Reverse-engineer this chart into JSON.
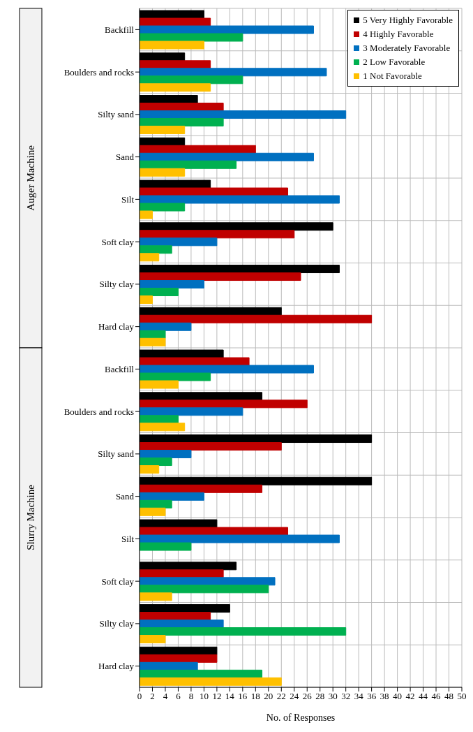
{
  "chart_data": {
    "type": "bar",
    "orientation": "horizontal",
    "xlabel": "No. of Responses",
    "categories": [
      "Backfill",
      "Boulders and rocks",
      "Silty sand",
      "Sand",
      "Silt",
      "Soft clay",
      "Silty clay",
      "Hard clay",
      "Backfill",
      "Boulders and rocks",
      "Silty sand",
      "Sand",
      "Silt",
      "Soft clay",
      "Silty clay",
      "Hard clay"
    ],
    "series": [
      {
        "name": "5 Very Highly Favorable",
        "color": "#000000",
        "values": [
          10,
          7,
          9,
          7,
          11,
          30,
          31,
          22,
          13,
          19,
          36,
          36,
          12,
          15,
          14,
          12
        ]
      },
      {
        "name": "4 Highly Favorable",
        "color": "#c00000",
        "values": [
          11,
          11,
          13,
          18,
          23,
          24,
          25,
          36,
          17,
          26,
          22,
          19,
          23,
          13,
          11,
          12
        ]
      },
      {
        "name": "3 Moderately Favorable",
        "color": "#0070c0",
        "values": [
          27,
          29,
          32,
          27,
          31,
          12,
          10,
          8,
          27,
          16,
          8,
          10,
          31,
          21,
          13,
          9
        ]
      },
      {
        "name": "2 Low Favorable",
        "color": "#00b050",
        "values": [
          16,
          16,
          13,
          15,
          7,
          5,
          6,
          4,
          11,
          6,
          5,
          5,
          8,
          20,
          32,
          19
        ]
      },
      {
        "name": "1 Not Favorable",
        "color": "#ffc000",
        "values": [
          10,
          11,
          7,
          7,
          2,
          3,
          2,
          4,
          6,
          7,
          3,
          4,
          0,
          5,
          4,
          22
        ]
      }
    ],
    "xlim": [
      0,
      50
    ],
    "xticks": [
      0,
      2,
      4,
      6,
      8,
      10,
      12,
      14,
      16,
      18,
      20,
      22,
      24,
      26,
      28,
      30,
      32,
      34,
      36,
      38,
      40,
      42,
      44,
      46,
      48,
      50
    ],
    "grid": true,
    "legend": "top right",
    "annotations": [
      "Auger Machine",
      "Slurry Machine"
    ]
  }
}
